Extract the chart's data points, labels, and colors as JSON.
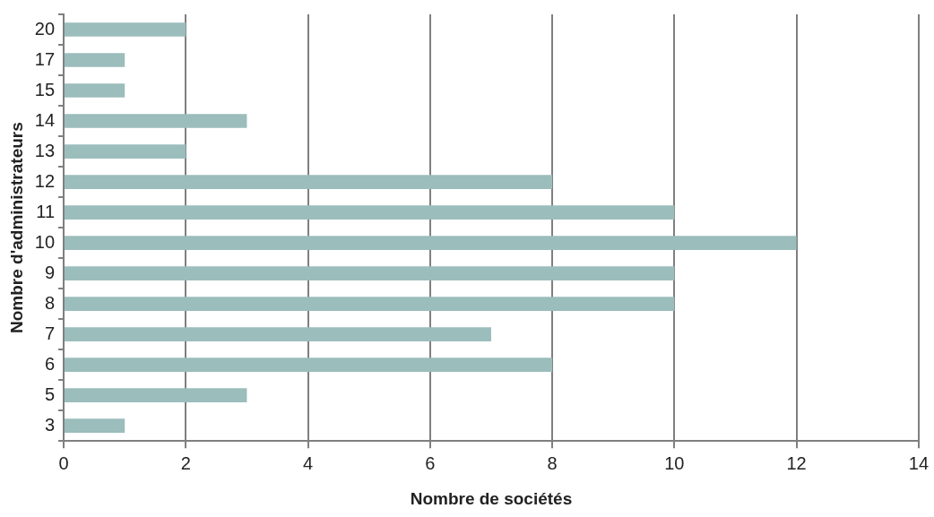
{
  "chart_data": {
    "type": "bar",
    "orientation": "horizontal",
    "xlabel": "Nombre de sociétés",
    "ylabel": "Nombre d'administrateurs",
    "categories": [
      "20",
      "17",
      "15",
      "14",
      "13",
      "12",
      "11",
      "10",
      "9",
      "8",
      "7",
      "6",
      "5",
      "3"
    ],
    "values": [
      2,
      1,
      1,
      3,
      2,
      8,
      10,
      12,
      10,
      10,
      7,
      8,
      3,
      1
    ],
    "color": "#9bbdbc",
    "xlim": [
      0,
      14
    ],
    "xticks": [
      0,
      2,
      4,
      6,
      8,
      10,
      12,
      14
    ],
    "grid": "x",
    "legend": false
  }
}
